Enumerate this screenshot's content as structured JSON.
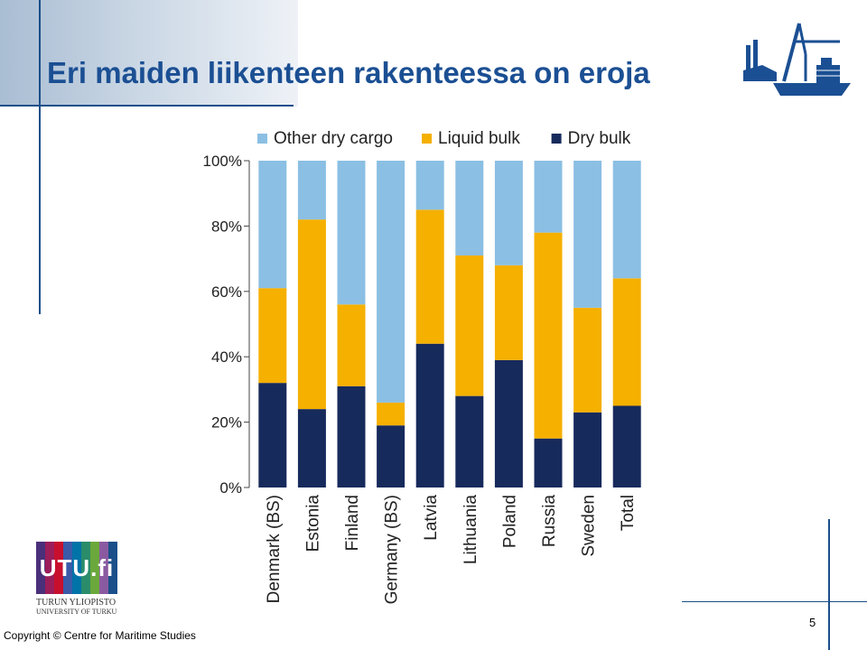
{
  "slide": {
    "title": "Eri maiden liikenteen rakenteessa on eroja",
    "page_number": "5",
    "copyright": "Copyright © Centre for Maritime Studies"
  },
  "logo": {
    "university_mark": "UTU.fi",
    "university_line1": "TURUN YLIOPISTO",
    "university_line2": "UNIVERSITY OF TURKU"
  },
  "colors": {
    "title": "#1b4f93",
    "other_dry_cargo": "#8bbfe3",
    "liquid_bulk": "#f5b000",
    "dry_bulk": "#172a5c"
  },
  "chart_data": {
    "type": "bar",
    "stacked": true,
    "categories": [
      "Denmark (BS)",
      "Estonia",
      "Finland",
      "Germany (BS)",
      "Latvia",
      "Lithuania",
      "Poland",
      "Russia",
      "Sweden",
      "Total"
    ],
    "series": [
      {
        "name": "Dry bulk",
        "values": [
          32,
          24,
          31,
          19,
          44,
          28,
          39,
          15,
          23,
          25
        ]
      },
      {
        "name": "Liquid bulk",
        "values": [
          29,
          58,
          25,
          7,
          41,
          43,
          29,
          63,
          32,
          39
        ]
      },
      {
        "name": "Other dry cargo",
        "values": [
          39,
          18,
          44,
          74,
          15,
          29,
          32,
          22,
          45,
          36
        ]
      }
    ],
    "legend_order": [
      "Other dry cargo",
      "Liquid bulk",
      "Dry bulk"
    ],
    "ylim": [
      0,
      100
    ],
    "yticks": [
      "0%",
      "20%",
      "40%",
      "60%",
      "80%",
      "100%"
    ],
    "legend_position": "top",
    "grid": false
  }
}
